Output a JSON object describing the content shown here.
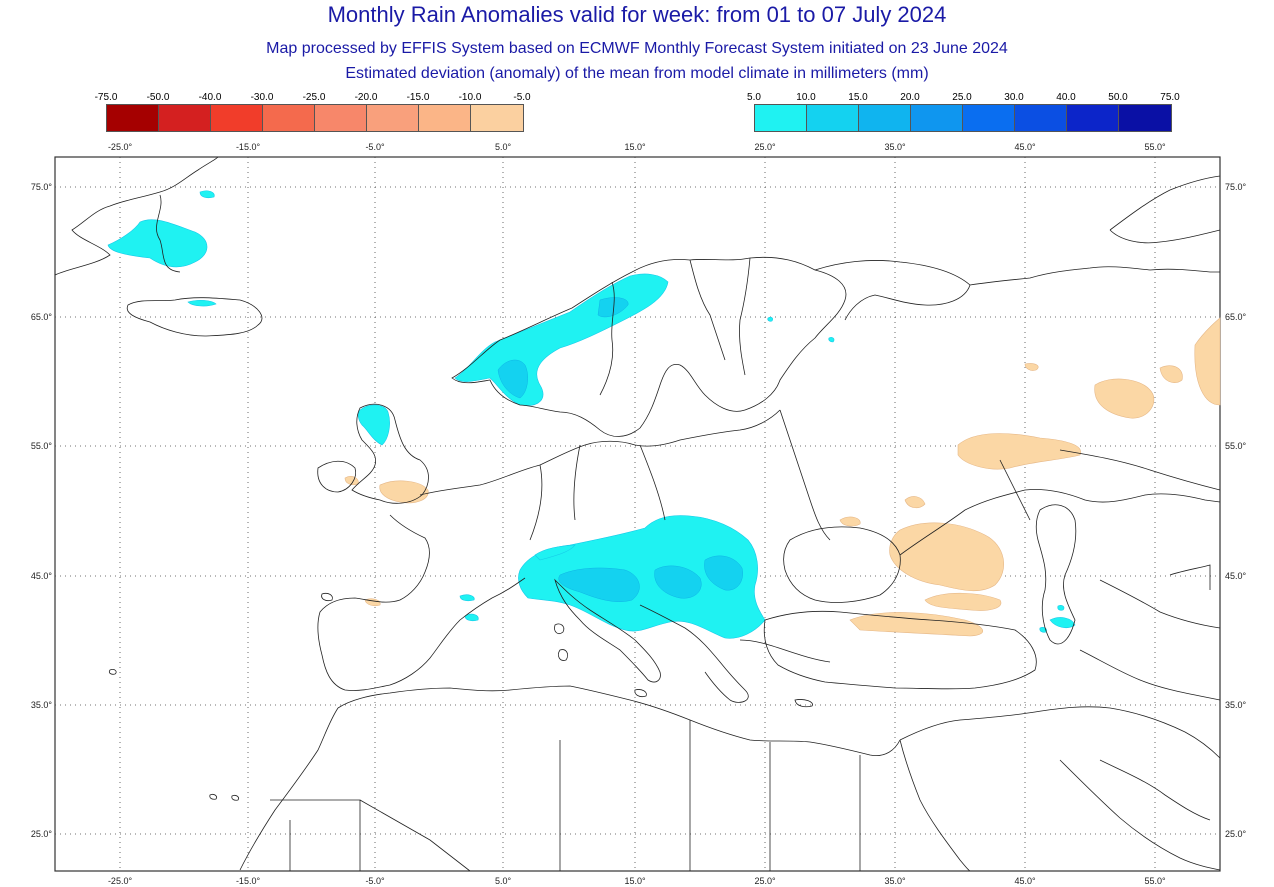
{
  "header": {
    "title": "Monthly Rain Anomalies valid for week: from 01 to 07 July 2024",
    "subtitle1": "Map processed by EFFIS System based on ECMWF Monthly Forecast System initiated on 23 June 2024",
    "subtitle2": "Estimated deviation (anomaly) of the mean from model climate in millimeters (mm)"
  },
  "legend_negative": {
    "ticks": [
      "-75.0",
      "-50.0",
      "-40.0",
      "-30.0",
      "-25.0",
      "-20.0",
      "-15.0",
      "-10.0",
      "-5.0"
    ],
    "colors": [
      "#a50000",
      "#d42020",
      "#f13d2a",
      "#f46a4d",
      "#f7876a",
      "#f9a07c",
      "#fbb587",
      "#fbd0a0"
    ]
  },
  "legend_positive": {
    "ticks": [
      "5.0",
      "10.0",
      "15.0",
      "20.0",
      "25.0",
      "30.0",
      "40.0",
      "50.0",
      "75.0"
    ],
    "colors": [
      "#1ff2f2",
      "#14d2f0",
      "#10b4ef",
      "#0f96ef",
      "#0a6ef0",
      "#0b4fe3",
      "#0c25c9",
      "#0a10a5"
    ]
  },
  "map": {
    "lon_labels": [
      "-25.0°",
      "-15.0°",
      "-5.0°",
      "5.0°",
      "15.0°",
      "25.0°",
      "35.0°",
      "45.0°",
      "55.0°"
    ],
    "lat_labels": [
      "75.0°",
      "65.0°",
      "55.0°",
      "45.0°",
      "35.0°",
      "25.0°"
    ],
    "positive_anomaly_color": "#1ff2f2",
    "negative_anomaly_color": "#fbd7a5"
  }
}
